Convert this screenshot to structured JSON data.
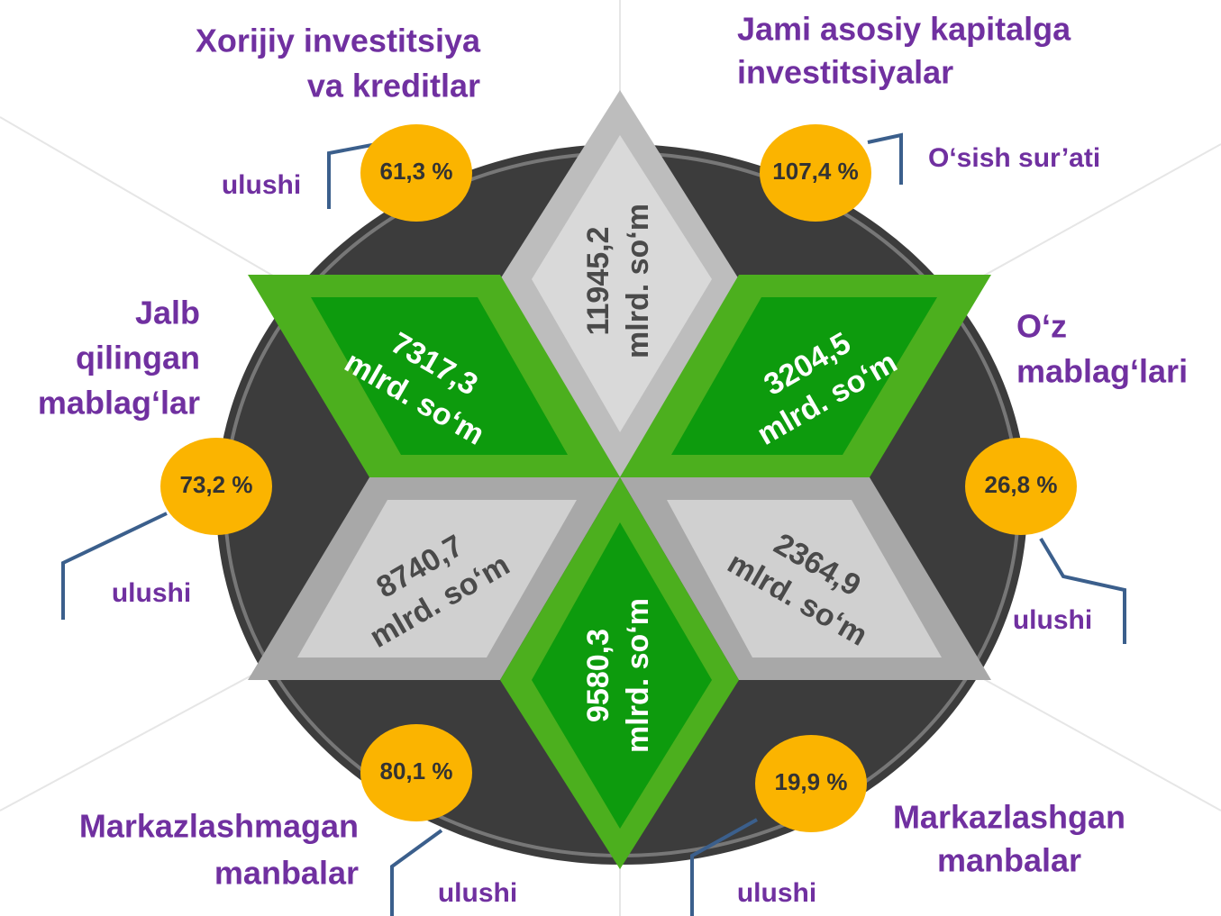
{
  "headings": [
    [
      "Xorijiy investitsiya",
      "va kreditlar"
    ],
    [
      "Jami asosiy kapitalga",
      "investitsiyalar"
    ],
    [
      "Jalb",
      "qilingan",
      "mablag‘lar"
    ],
    [
      "O‘z",
      "mablag‘lari"
    ],
    [
      "Markazlashmagan",
      "manbalar"
    ],
    [
      "Markazlashgan",
      "manbalar"
    ]
  ],
  "badges": [
    {
      "text": "61,3 %",
      "note": "ulushi"
    },
    {
      "text": "107,4 %",
      "note": "O‘sish sur’ati"
    },
    {
      "text": "73,2 %",
      "note": "ulushi"
    },
    {
      "text": "26,8 %",
      "note": "ulushi"
    },
    {
      "text": "80,1 %",
      "note": "ulushi"
    },
    {
      "text": "19,9 %",
      "note": "ulushi"
    }
  ],
  "diamonds": [
    {
      "value": "11945,2",
      "unit": "mlrd. so‘m"
    },
    {
      "value": "7317,3",
      "unit": "mlrd. so‘m"
    },
    {
      "value": "3204,5",
      "unit": "mlrd. so‘m"
    },
    {
      "value": "8740,7",
      "unit": "mlrd. so‘m"
    },
    {
      "value": "2364,9",
      "unit": "mlrd. so‘m"
    },
    {
      "value": "9580,3",
      "unit": "mlrd. so‘m"
    }
  ]
}
